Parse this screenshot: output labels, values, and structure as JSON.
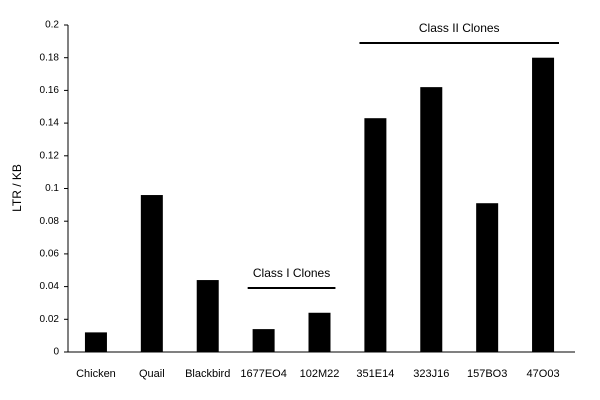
{
  "chart_data": {
    "type": "bar",
    "y_label": "LTR / KB",
    "categories": [
      "Chicken",
      "Quail",
      "Blackbird",
      "1677EO4",
      "102M22",
      "351E14",
      "323J16",
      "157BO3",
      "47O03"
    ],
    "values": [
      0.012,
      0.096,
      0.044,
      0.014,
      0.024,
      0.143,
      0.162,
      0.091,
      0.18
    ],
    "color": "#000000",
    "ylim": [
      0,
      0.2
    ],
    "yticks": [
      0,
      0.02,
      0.04,
      0.06,
      0.08,
      0.1,
      0.12,
      0.14,
      0.16,
      0.18,
      0.2
    ],
    "grid": false,
    "annotations": [
      "Class I Clones",
      "Class II Clones"
    ]
  }
}
